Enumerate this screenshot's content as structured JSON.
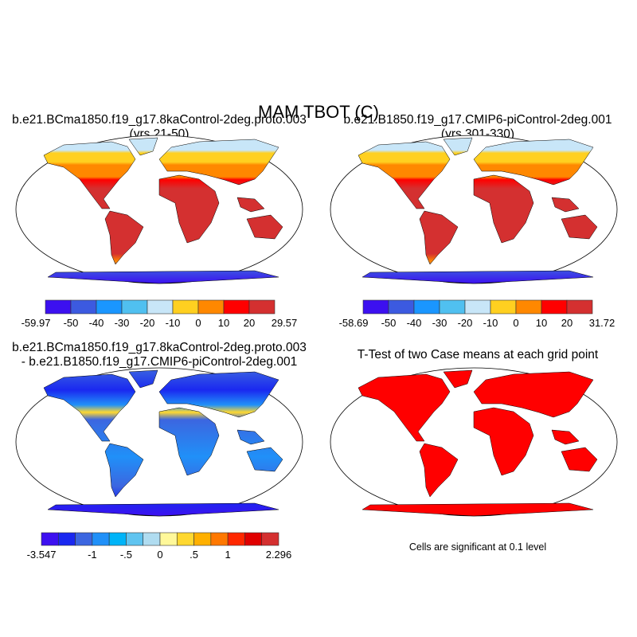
{
  "title": "MAM TBOT (C)",
  "panels": [
    {
      "title1": "b.e21.BCma1850.f19_g17.8kaControl-2deg.proto.003",
      "title2": "(yrs 21-50)"
    },
    {
      "title1": "b.e21.B1850.f19_g17.CMIP6-piControl-2deg.001",
      "title2": "(yrs 301-330)"
    },
    {
      "title1": "b.e21.BCma1850.f19_g17.8kaControl-2deg.proto.003",
      "title2": "- b.e21.B1850.f19_g17.CMIP6-piControl-2deg.001"
    },
    {
      "title1": "T-Test of two Case means at each grid point",
      "note": "Cells are significant at 0.1 level"
    }
  ],
  "colorbars": [
    {
      "colors": [
        "#3c10f0",
        "#3c5ae0",
        "#1a96ff",
        "#50c0f0",
        "#c8e6f8",
        "#ffd020",
        "#ff8800",
        "#ff0000",
        "#d43030"
      ],
      "labels": [
        "-59.97",
        "-50",
        "-40",
        "-30",
        "-20",
        "-10",
        "0",
        "10",
        "20",
        "29.57"
      ]
    },
    {
      "colors": [
        "#3c10f0",
        "#3c5ae0",
        "#1a96ff",
        "#50c0f0",
        "#c8e6f8",
        "#ffd020",
        "#ff8800",
        "#ff0000",
        "#d43030"
      ],
      "labels": [
        "-58.69",
        "-50",
        "-40",
        "-30",
        "-20",
        "-10",
        "0",
        "10",
        "20",
        "31.72"
      ]
    },
    {
      "colors": [
        "#3d10f0",
        "#1a28f0",
        "#3c66e0",
        "#2090f8",
        "#00b4f8",
        "#60c4f0",
        "#b0dcf0",
        "#fff89a",
        "#ffd830",
        "#ffb000",
        "#ff7800",
        "#ff2800",
        "#e00000",
        "#d43030"
      ],
      "labels": [
        "-3.547",
        "",
        "",
        "-1",
        "",
        "-.5",
        "",
        "0",
        "",
        ".5",
        "",
        "1",
        "",
        "",
        "2.296"
      ]
    }
  ]
}
